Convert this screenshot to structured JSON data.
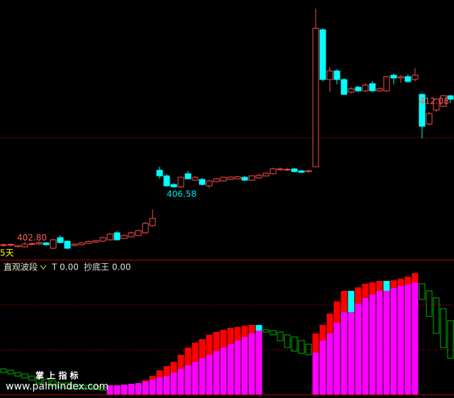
{
  "chart_data": [
    {
      "type": "candlestick",
      "period_label": "5天",
      "up_color": "#ff4a4a",
      "down_color": "#00ffff",
      "ylim": [
        401.9,
        418.8
      ],
      "hlines": [
        409.82
      ],
      "annotations": [
        {
          "value": 402.8,
          "label": "402.80",
          "color": "#ff5a5a"
        },
        {
          "value": 406.58,
          "label": "406.58",
          "color": "#00e5ee"
        },
        {
          "value": 412.08,
          "label": "412.08",
          "color": "#ff5a5a"
        }
      ],
      "open": [
        402.78,
        402.8,
        402.7,
        402.69,
        402.85,
        402.88,
        402.95,
        402.6,
        403.29,
        403.06,
        402.78,
        402.83,
        402.92,
        403.0,
        403.06,
        403.15,
        403.61,
        403.24,
        403.34,
        403.43,
        403.61,
        404.08,
        407.69,
        407.32,
        406.76,
        406.6,
        407.46,
        407.04,
        407.09,
        406.67,
        406.95,
        406.99,
        407.09,
        407.13,
        407.23,
        407.04,
        407.18,
        407.32,
        407.46,
        407.72,
        407.72,
        407.78,
        407.65,
        407.6,
        407.92,
        416.86,
        413.61,
        414.17,
        413.61,
        412.78,
        413.11,
        412.87,
        413.34,
        412.87,
        412.87,
        413.89,
        413.71,
        413.8,
        413.61,
        412.64,
        410.7,
        411.62,
        411.86,
        412.55
      ],
      "high": [
        402.9,
        402.92,
        402.8,
        403.0,
        402.97,
        403.06,
        403.0,
        403.2,
        403.45,
        403.1,
        402.92,
        403.0,
        403.1,
        403.15,
        403.35,
        403.6,
        403.7,
        403.5,
        403.7,
        403.8,
        404.3,
        405.14,
        407.92,
        407.45,
        406.85,
        407.27,
        407.65,
        407.3,
        407.18,
        407.05,
        407.18,
        407.27,
        407.3,
        407.32,
        407.3,
        407.36,
        407.46,
        407.55,
        407.85,
        407.88,
        407.85,
        407.85,
        407.72,
        407.72,
        418.24,
        416.95,
        414.4,
        414.3,
        413.7,
        413.11,
        413.2,
        413.4,
        413.5,
        413.1,
        413.85,
        414.0,
        413.9,
        413.95,
        414.36,
        412.7,
        411.5,
        412.4,
        412.6,
        412.6
      ],
      "low": [
        402.7,
        402.72,
        402.65,
        402.65,
        402.78,
        402.81,
        402.78,
        402.55,
        402.9,
        402.55,
        402.72,
        402.78,
        402.88,
        402.95,
        403.0,
        403.1,
        403.1,
        403.2,
        403.3,
        403.38,
        403.55,
        404.0,
        407.13,
        406.6,
        406.58,
        406.6,
        407.1,
        406.99,
        406.7,
        406.5,
        406.9,
        406.95,
        407.04,
        407.09,
        407.0,
        407.0,
        407.13,
        407.27,
        407.4,
        407.65,
        407.65,
        407.55,
        407.5,
        407.55,
        407.9,
        413.48,
        412.78,
        413.3,
        412.6,
        412.7,
        412.8,
        412.8,
        412.8,
        412.8,
        412.8,
        413.3,
        413.4,
        413.4,
        413.5,
        409.77,
        410.6,
        411.5,
        411.8,
        412.08
      ],
      "close": [
        402.83,
        402.85,
        402.78,
        402.87,
        402.9,
        402.97,
        402.83,
        403.15,
        402.97,
        402.6,
        402.87,
        402.95,
        403.04,
        403.1,
        403.29,
        403.52,
        403.15,
        403.43,
        403.61,
        403.75,
        404.22,
        404.54,
        407.32,
        406.67,
        406.6,
        407.23,
        407.13,
        407.23,
        406.76,
        406.99,
        407.13,
        407.23,
        407.23,
        407.27,
        407.04,
        407.32,
        407.36,
        407.5,
        407.78,
        407.78,
        407.75,
        407.6,
        407.55,
        407.65,
        416.95,
        413.61,
        414.17,
        413.61,
        412.64,
        413.01,
        412.87,
        413.24,
        412.87,
        413.01,
        413.8,
        413.71,
        413.8,
        413.48,
        413.89,
        410.56,
        411.39,
        412.32,
        412.55,
        412.32
      ]
    },
    {
      "type": "indicator_bars",
      "title": "直观波段",
      "indicator_labels": [
        "T 0.00",
        "抄底王 0.00"
      ],
      "ylim": [
        0,
        100
      ],
      "hlines": [
        70,
        35
      ],
      "colors": {
        "base": "#ff00ff",
        "red_cap": "#ff0000",
        "cyan_cap": "#00ffff",
        "green": "#00b400"
      },
      "base": [
        null,
        null,
        null,
        null,
        null,
        null,
        null,
        null,
        null,
        null,
        null,
        null,
        null,
        null,
        null,
        7.2,
        7.2,
        7.8,
        8.3,
        8.9,
        10,
        11.7,
        13.3,
        14.4,
        17.2,
        20,
        22.8,
        25.6,
        28.3,
        31.1,
        33.9,
        36.7,
        39.4,
        42.2,
        45,
        47.8,
        50,
        null,
        null,
        null,
        null,
        null,
        null,
        null,
        32.8,
        42.2,
        47.8,
        56.1,
        64.4,
        64.4,
        71.1,
        75.6,
        78.3,
        81.1,
        81.1,
        83.3,
        85,
        86.1,
        87.8,
        null,
        null,
        null,
        null,
        null
      ],
      "red_cap": [
        null,
        null,
        null,
        null,
        null,
        null,
        null,
        null,
        null,
        null,
        null,
        null,
        null,
        null,
        null,
        null,
        null,
        null,
        null,
        null,
        1.1,
        2.7,
        5.6,
        7.8,
        8.4,
        11.1,
        13.9,
        15,
        15,
        15.6,
        15,
        13.9,
        12.8,
        10.6,
        8.9,
        6.6,
        null,
        null,
        null,
        null,
        null,
        null,
        null,
        null,
        15,
        12.2,
        15.5,
        16.7,
        16.7,
        null,
        12.8,
        11.1,
        9.5,
        7.8,
        null,
        6.1,
        5.6,
        6.1,
        7.2,
        null,
        null,
        null,
        null,
        null
      ],
      "cyan_cap": [
        null,
        null,
        null,
        null,
        null,
        null,
        null,
        null,
        null,
        null,
        null,
        null,
        null,
        null,
        null,
        null,
        null,
        null,
        null,
        null,
        null,
        null,
        null,
        null,
        null,
        null,
        null,
        null,
        null,
        null,
        null,
        null,
        null,
        null,
        null,
        null,
        4.4,
        null,
        null,
        null,
        null,
        null,
        null,
        null,
        null,
        null,
        null,
        null,
        null,
        16.7,
        null,
        null,
        null,
        null,
        7.8,
        null,
        null,
        null,
        null,
        null,
        null,
        null,
        null,
        null
      ],
      "green_low": [
        17.2,
        16.1,
        14.4,
        12.8,
        11.1,
        8.9,
        7.8,
        6.7,
        5.6,
        5,
        4.4,
        4.4,
        4.4,
        3.9,
        3.3,
        null,
        null,
        null,
        null,
        null,
        null,
        null,
        null,
        null,
        null,
        null,
        null,
        null,
        null,
        null,
        null,
        null,
        null,
        null,
        null,
        null,
        null,
        48.9,
        46.7,
        42.2,
        36.7,
        33.9,
        32.2,
        31.1,
        null,
        null,
        null,
        null,
        null,
        null,
        null,
        null,
        null,
        null,
        null,
        null,
        null,
        null,
        null,
        74.4,
        61.1,
        47.8,
        36.7,
        28.3
      ],
      "green_high": [
        20,
        18.9,
        17.2,
        16.1,
        14.4,
        12.8,
        11.7,
        10.6,
        8.9,
        8.9,
        7.8,
        7.2,
        7.2,
        6.7,
        6.1,
        null,
        null,
        null,
        null,
        null,
        null,
        null,
        null,
        null,
        null,
        null,
        null,
        null,
        null,
        null,
        null,
        null,
        null,
        null,
        null,
        null,
        null,
        50.6,
        50,
        48.9,
        46.7,
        45,
        42.2,
        39.4,
        null,
        null,
        null,
        null,
        null,
        null,
        null,
        null,
        null,
        null,
        null,
        null,
        null,
        null,
        null,
        86.7,
        81.1,
        75.6,
        67.2,
        57.8
      ]
    }
  ],
  "watermark": {
    "title": "掌 上 指 标",
    "url": "www.palmindex.com"
  }
}
